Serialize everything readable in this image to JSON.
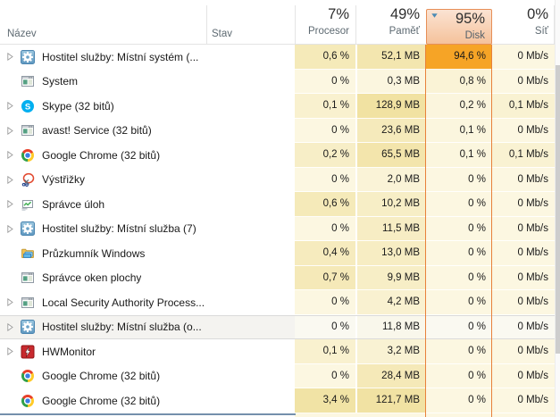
{
  "header": {
    "name_label": "Název",
    "status_label": "Stav",
    "value_columns": [
      {
        "id": "cpu",
        "percent": "7%",
        "label": "Procesor",
        "sorted": false
      },
      {
        "id": "memory",
        "percent": "49%",
        "label": "Paměť",
        "sorted": false
      },
      {
        "id": "disk",
        "percent": "95%",
        "label": "Disk",
        "sorted": true,
        "sort_direction": "desc"
      },
      {
        "id": "network",
        "percent": "0%",
        "label": "Síť",
        "sorted": false
      }
    ]
  },
  "colors": {
    "heat_low": "#FDF9E8",
    "heat_mid": "#F1E2A2",
    "heat_high": "#F6A426",
    "disk_column_border": "#E8813B",
    "sorted_header_bg_top": "#FBE3D3",
    "sorted_header_bg_bottom": "#F5C29B",
    "sorted_header_border": "#E78F57",
    "sort_arrow": "#4B8BB4",
    "hover_row_bg": "#F4F3F0",
    "hover_row_border": "#DADADA",
    "hover_cell_tint": "#FAF9F5",
    "scrollbar_thumb": "#CDCDCD",
    "window_edge": "#7490AC"
  },
  "rows": [
    {
      "name": "Hostitel služby: Místní systém (...",
      "icon": "services-gear",
      "expandable": true,
      "status": "",
      "cpu": "0,6 %",
      "memory": "52,1 MB",
      "disk": "94,6 %",
      "network": "0 Mb/s",
      "hovered": false
    },
    {
      "name": "System",
      "icon": "app-window",
      "expandable": false,
      "status": "",
      "cpu": "0 %",
      "memory": "0,3 MB",
      "disk": "0,8 %",
      "network": "0 Mb/s",
      "hovered": false
    },
    {
      "name": "Skype (32 bitů)",
      "icon": "skype",
      "expandable": true,
      "status": "",
      "cpu": "0,1 %",
      "memory": "128,9 MB",
      "disk": "0,2 %",
      "network": "0,1 Mb/s",
      "hovered": false
    },
    {
      "name": "avast! Service (32 bitů)",
      "icon": "app-window",
      "expandable": true,
      "status": "",
      "cpu": "0 %",
      "memory": "23,6 MB",
      "disk": "0,1 %",
      "network": "0 Mb/s",
      "hovered": false
    },
    {
      "name": "Google Chrome (32 bitů)",
      "icon": "chrome",
      "expandable": true,
      "status": "",
      "cpu": "0,2 %",
      "memory": "65,5 MB",
      "disk": "0,1 %",
      "network": "0,1 Mb/s",
      "hovered": false
    },
    {
      "name": "Výstřižky",
      "icon": "snipping",
      "expandable": true,
      "status": "",
      "cpu": "0 %",
      "memory": "2,0 MB",
      "disk": "0 %",
      "network": "0 Mb/s",
      "hovered": false
    },
    {
      "name": "Správce úloh",
      "icon": "taskmgr",
      "expandable": true,
      "status": "",
      "cpu": "0,6 %",
      "memory": "10,2 MB",
      "disk": "0 %",
      "network": "0 Mb/s",
      "hovered": false
    },
    {
      "name": "Hostitel služby: Místní služba (7)",
      "icon": "services-gear",
      "expandable": true,
      "status": "",
      "cpu": "0 %",
      "memory": "11,5 MB",
      "disk": "0 %",
      "network": "0 Mb/s",
      "hovered": false
    },
    {
      "name": "Průzkumník Windows",
      "icon": "explorer",
      "expandable": false,
      "status": "",
      "cpu": "0,4 %",
      "memory": "13,0 MB",
      "disk": "0 %",
      "network": "0 Mb/s",
      "hovered": false
    },
    {
      "name": "Správce oken plochy",
      "icon": "app-window",
      "expandable": false,
      "status": "",
      "cpu": "0,7 %",
      "memory": "9,9 MB",
      "disk": "0 %",
      "network": "0 Mb/s",
      "hovered": false
    },
    {
      "name": "Local Security Authority Process...",
      "icon": "app-window",
      "expandable": true,
      "status": "",
      "cpu": "0 %",
      "memory": "4,2 MB",
      "disk": "0 %",
      "network": "0 Mb/s",
      "hovered": false
    },
    {
      "name": "Hostitel služby: Místní služba (o...",
      "icon": "services-gear",
      "expandable": true,
      "status": "",
      "cpu": "0 %",
      "memory": "11,8 MB",
      "disk": "0 %",
      "network": "0 Mb/s",
      "hovered": true
    },
    {
      "name": "HWMonitor",
      "icon": "hwmonitor",
      "expandable": true,
      "status": "",
      "cpu": "0,1 %",
      "memory": "3,2 MB",
      "disk": "0 %",
      "network": "0 Mb/s",
      "hovered": false
    },
    {
      "name": "Google Chrome (32 bitů)",
      "icon": "chrome",
      "expandable": false,
      "status": "",
      "cpu": "0 %",
      "memory": "28,4 MB",
      "disk": "0 %",
      "network": "0 Mb/s",
      "hovered": false
    },
    {
      "name": "Google Chrome (32 bitů)",
      "icon": "chrome",
      "expandable": false,
      "status": "",
      "cpu": "3,4 %",
      "memory": "121,7 MB",
      "disk": "0 %",
      "network": "0 Mb/s",
      "hovered": false
    }
  ]
}
